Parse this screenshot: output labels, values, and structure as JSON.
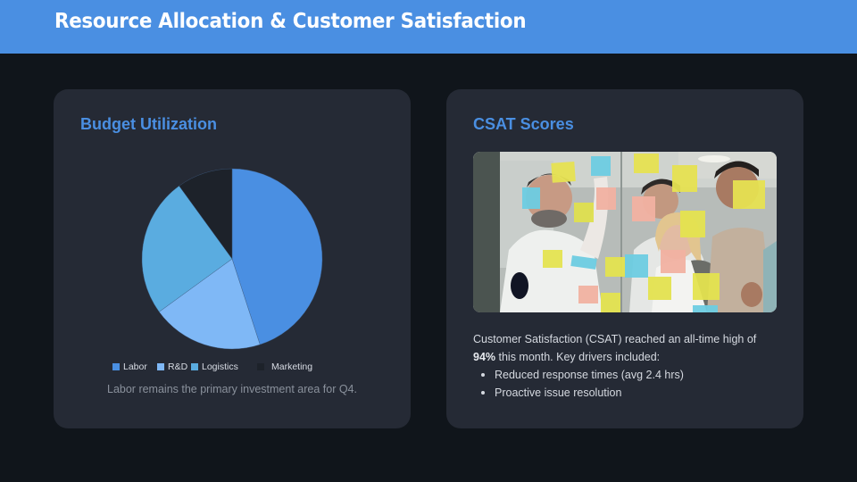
{
  "header": {
    "title": "Resource Allocation & Customer Satisfaction",
    "bg_color": "#4a8fe2"
  },
  "budget_card": {
    "title": "Budget Utilization",
    "legend": [
      {
        "label": "Labor",
        "color": "#4a8fe2"
      },
      {
        "label": "R&D",
        "color": "#7fb8f6"
      },
      {
        "label": "Logistics",
        "color": "#5aace0"
      },
      {
        "label": "Marketing",
        "color": "#1d222a"
      }
    ],
    "caption": "Labor remains the primary investment area for Q4."
  },
  "chart_data": {
    "type": "pie",
    "title": "Budget Utilization",
    "categories": [
      "Labor",
      "R&D",
      "Logistics",
      "Marketing"
    ],
    "values": [
      45,
      20,
      25,
      10
    ],
    "colors": [
      "#4a8fe2",
      "#7fb8f6",
      "#5aace0",
      "#1d222a"
    ],
    "legend_position": "bottom",
    "start_angle": "12 o'clock, clockwise"
  },
  "csat_card": {
    "title": "CSAT Scores",
    "image_icon": "team-sticky-notes-photo",
    "paragraph_prefix": "Customer Satisfaction (CSAT) reached an all-time high of ",
    "highlight_value": "94%",
    "paragraph_suffix": " this month. Key drivers included:",
    "bullets": [
      "Reduced response times (avg 2.4 hrs)",
      "Proactive issue resolution"
    ]
  }
}
